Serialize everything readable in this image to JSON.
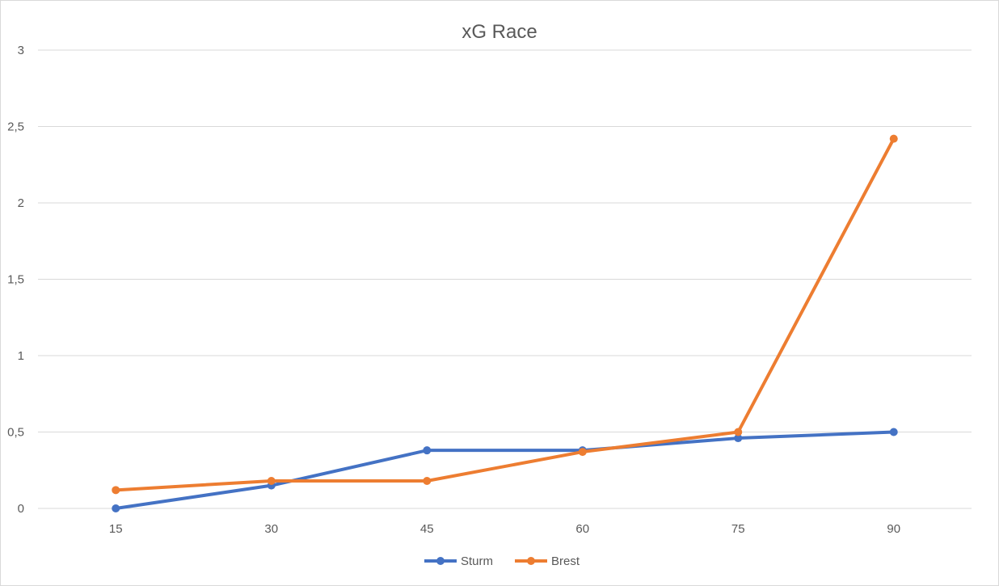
{
  "chart_data": {
    "type": "line",
    "title": "xG Race",
    "xlabel": "",
    "ylabel": "",
    "categories": [
      "15",
      "30",
      "45",
      "60",
      "75",
      "90"
    ],
    "y_ticks": [
      "0",
      "0,5",
      "1",
      "1,5",
      "2",
      "2,5",
      "3"
    ],
    "ylim": [
      0,
      3
    ],
    "grid": true,
    "legend_position": "bottom",
    "series": [
      {
        "name": "Sturm",
        "color": "#4472C4",
        "values": [
          0,
          0.15,
          0.38,
          0.38,
          0.46,
          0.5
        ]
      },
      {
        "name": "Brest",
        "color": "#ED7D31",
        "values": [
          0.12,
          0.18,
          0.18,
          0.37,
          0.5,
          2.42
        ]
      }
    ]
  }
}
